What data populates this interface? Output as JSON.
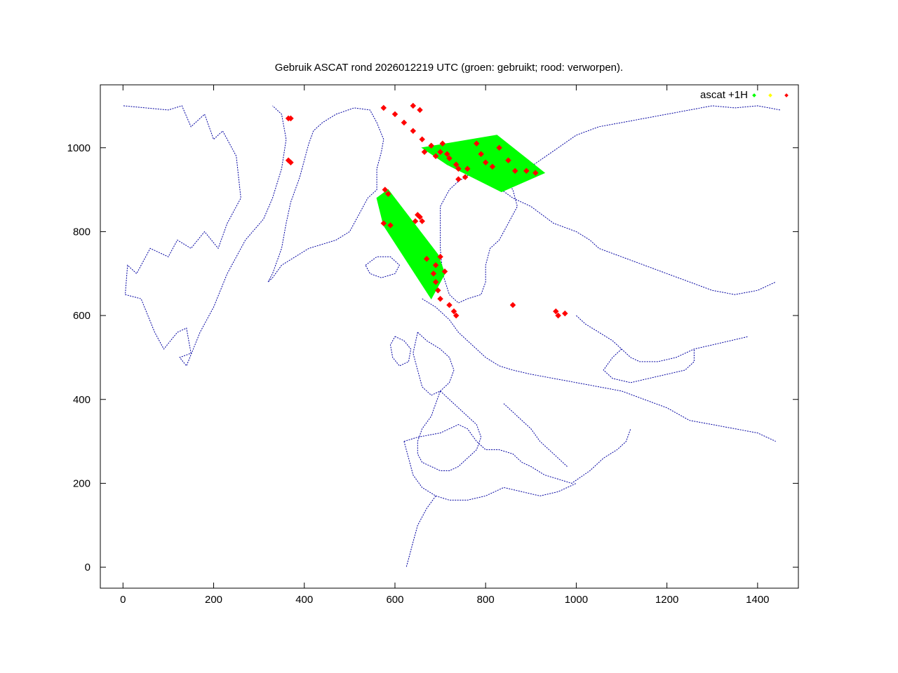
{
  "chart_data": {
    "type": "scatter",
    "title": "Gebruik ASCAT rond 2026012219 UTC (groen: gebruikt; rood: verworpen).",
    "xlabel": "",
    "ylabel": "",
    "xlim": [
      -50,
      1490
    ],
    "ylim": [
      -50,
      1150
    ],
    "x_ticks": [
      "0",
      "200",
      "400",
      "600",
      "800",
      "1000",
      "1200",
      "1400"
    ],
    "y_ticks": [
      "0",
      "200",
      "400",
      "600",
      "800",
      "1000"
    ],
    "x_tick_values": [
      0,
      200,
      400,
      600,
      800,
      1000,
      1200,
      1400
    ],
    "y_tick_values": [
      0,
      200,
      400,
      600,
      800,
      1000
    ],
    "grid": false,
    "legend_position": "top-right",
    "legend": {
      "label": "ascat +1H",
      "colors": [
        "#00ff00",
        "#ffff00",
        "#ff0000"
      ]
    },
    "colors": {
      "coastline": "#0000a0",
      "used": "#00ff00",
      "rejected": "#ff0000",
      "axes": "#000000"
    },
    "series": [
      {
        "name": "",
        "role": "used (green swath, southern segment)",
        "color": "#00ff00",
        "polygon": [
          [
            560,
            880
          ],
          [
            585,
            900
          ],
          [
            695,
            745
          ],
          [
            710,
            700
          ],
          [
            680,
            640
          ],
          [
            575,
            815
          ]
        ]
      },
      {
        "name": "",
        "role": "used (green swath, northern segment)",
        "color": "#00ff00",
        "polygon": [
          [
            660,
            1000
          ],
          [
            825,
            1030
          ],
          [
            930,
            940
          ],
          [
            835,
            895
          ],
          [
            715,
            960
          ]
        ]
      },
      {
        "name": "",
        "role": "rejected (red)",
        "color": "#ff0000",
        "points": [
          [
            575,
            1095
          ],
          [
            600,
            1080
          ],
          [
            620,
            1060
          ],
          [
            640,
            1040
          ],
          [
            660,
            1020
          ],
          [
            680,
            1005
          ],
          [
            700,
            990
          ],
          [
            720,
            975
          ],
          [
            735,
            960
          ],
          [
            705,
            1010
          ],
          [
            715,
            985
          ],
          [
            690,
            980
          ],
          [
            665,
            990
          ],
          [
            780,
            1010
          ],
          [
            790,
            985
          ],
          [
            800,
            965
          ],
          [
            815,
            955
          ],
          [
            830,
            1000
          ],
          [
            850,
            970
          ],
          [
            865,
            945
          ],
          [
            760,
            950
          ],
          [
            755,
            930
          ],
          [
            740,
            925
          ],
          [
            640,
            1100
          ],
          [
            655,
            1090
          ],
          [
            365,
            1070
          ],
          [
            370,
            1070
          ],
          [
            365,
            970
          ],
          [
            370,
            965
          ],
          [
            578,
            900
          ],
          [
            585,
            890
          ],
          [
            650,
            840
          ],
          [
            655,
            835
          ],
          [
            645,
            825
          ],
          [
            660,
            825
          ],
          [
            590,
            815
          ],
          [
            575,
            820
          ],
          [
            670,
            735
          ],
          [
            690,
            720
          ],
          [
            710,
            705
          ],
          [
            700,
            740
          ],
          [
            685,
            700
          ],
          [
            690,
            680
          ],
          [
            695,
            660
          ],
          [
            700,
            640
          ],
          [
            720,
            625
          ],
          [
            730,
            610
          ],
          [
            735,
            600
          ],
          [
            860,
            625
          ],
          [
            955,
            610
          ],
          [
            960,
            600
          ],
          [
            975,
            605
          ],
          [
            740,
            950
          ],
          [
            890,
            945
          ],
          [
            910,
            940
          ]
        ]
      }
    ],
    "coastlines": [
      [
        [
          1,
          1100
        ],
        [
          50,
          1095
        ],
        [
          100,
          1090
        ],
        [
          130,
          1100
        ],
        [
          150,
          1050
        ],
        [
          180,
          1080
        ],
        [
          200,
          1020
        ],
        [
          220,
          1040
        ],
        [
          250,
          980
        ],
        [
          260,
          880
        ],
        [
          230,
          820
        ],
        [
          210,
          760
        ],
        [
          180,
          800
        ],
        [
          150,
          760
        ],
        [
          120,
          780
        ],
        [
          100,
          740
        ],
        [
          60,
          760
        ],
        [
          30,
          700
        ],
        [
          10,
          720
        ],
        [
          5,
          650
        ],
        [
          40,
          640
        ],
        [
          70,
          560
        ],
        [
          90,
          520
        ],
        [
          120,
          560
        ],
        [
          140,
          570
        ],
        [
          150,
          510
        ],
        [
          125,
          500
        ],
        [
          140,
          480
        ],
        [
          170,
          560
        ],
        [
          200,
          620
        ],
        [
          230,
          700
        ],
        [
          270,
          780
        ],
        [
          310,
          830
        ],
        [
          330,
          880
        ],
        [
          350,
          950
        ],
        [
          360,
          1020
        ],
        [
          350,
          1080
        ],
        [
          330,
          1100
        ]
      ],
      [
        [
          320,
          680
        ],
        [
          330,
          700
        ],
        [
          350,
          760
        ],
        [
          360,
          820
        ],
        [
          370,
          870
        ],
        [
          390,
          930
        ],
        [
          400,
          970
        ],
        [
          410,
          1010
        ],
        [
          420,
          1040
        ],
        [
          440,
          1060
        ],
        [
          470,
          1080
        ],
        [
          510,
          1095
        ],
        [
          545,
          1090
        ],
        [
          560,
          1060
        ],
        [
          575,
          1020
        ],
        [
          570,
          990
        ],
        [
          560,
          950
        ],
        [
          560,
          900
        ],
        [
          540,
          880
        ],
        [
          520,
          840
        ],
        [
          500,
          800
        ],
        [
          470,
          780
        ],
        [
          440,
          770
        ],
        [
          410,
          760
        ],
        [
          380,
          740
        ],
        [
          350,
          720
        ],
        [
          330,
          690
        ],
        [
          320,
          680
        ]
      ],
      [
        [
          535,
          720
        ],
        [
          560,
          740
        ],
        [
          590,
          740
        ],
        [
          610,
          720
        ],
        [
          600,
          700
        ],
        [
          570,
          690
        ],
        [
          545,
          700
        ],
        [
          535,
          720
        ]
      ],
      [
        [
          700,
          860
        ],
        [
          720,
          900
        ],
        [
          740,
          920
        ],
        [
          770,
          940
        ],
        [
          800,
          950
        ],
        [
          830,
          940
        ],
        [
          860,
          900
        ],
        [
          870,
          860
        ],
        [
          850,
          820
        ],
        [
          830,
          780
        ],
        [
          810,
          760
        ],
        [
          800,
          720
        ],
        [
          800,
          680
        ],
        [
          790,
          650
        ],
        [
          760,
          640
        ],
        [
          740,
          630
        ],
        [
          720,
          650
        ],
        [
          705,
          700
        ],
        [
          700,
          760
        ],
        [
          700,
          820
        ],
        [
          700,
          860
        ]
      ],
      [
        [
          880,
          940
        ],
        [
          920,
          970
        ],
        [
          960,
          1000
        ],
        [
          1000,
          1030
        ],
        [
          1050,
          1050
        ],
        [
          1100,
          1060
        ],
        [
          1150,
          1070
        ],
        [
          1200,
          1080
        ],
        [
          1250,
          1090
        ],
        [
          1300,
          1100
        ],
        [
          1350,
          1095
        ],
        [
          1400,
          1100
        ],
        [
          1450,
          1090
        ]
      ],
      [
        [
          835,
          900
        ],
        [
          860,
          880
        ],
        [
          900,
          860
        ],
        [
          950,
          820
        ],
        [
          1000,
          800
        ],
        [
          1030,
          780
        ],
        [
          1050,
          760
        ],
        [
          1100,
          740
        ],
        [
          1150,
          720
        ],
        [
          1200,
          700
        ],
        [
          1250,
          680
        ],
        [
          1300,
          660
        ],
        [
          1350,
          650
        ],
        [
          1400,
          660
        ],
        [
          1440,
          680
        ]
      ],
      [
        [
          660,
          640
        ],
        [
          690,
          620
        ],
        [
          720,
          590
        ],
        [
          740,
          560
        ],
        [
          760,
          540
        ],
        [
          780,
          520
        ],
        [
          800,
          500
        ],
        [
          830,
          480
        ],
        [
          860,
          470
        ],
        [
          900,
          460
        ],
        [
          950,
          450
        ],
        [
          1000,
          440
        ],
        [
          1050,
          430
        ],
        [
          1100,
          420
        ],
        [
          1150,
          400
        ],
        [
          1200,
          380
        ],
        [
          1250,
          350
        ],
        [
          1300,
          340
        ],
        [
          1350,
          330
        ],
        [
          1400,
          320
        ],
        [
          1440,
          300
        ]
      ],
      [
        [
          650,
          560
        ],
        [
          670,
          540
        ],
        [
          700,
          520
        ],
        [
          720,
          500
        ],
        [
          730,
          470
        ],
        [
          720,
          440
        ],
        [
          700,
          420
        ],
        [
          680,
          410
        ],
        [
          660,
          430
        ],
        [
          650,
          470
        ],
        [
          640,
          510
        ],
        [
          650,
          560
        ]
      ],
      [
        [
          600,
          550
        ],
        [
          620,
          540
        ],
        [
          635,
          520
        ],
        [
          630,
          490
        ],
        [
          610,
          480
        ],
        [
          595,
          500
        ],
        [
          590,
          530
        ],
        [
          600,
          550
        ]
      ],
      [
        [
          700,
          420
        ],
        [
          720,
          400
        ],
        [
          740,
          380
        ],
        [
          760,
          360
        ],
        [
          780,
          340
        ],
        [
          790,
          310
        ],
        [
          780,
          280
        ],
        [
          760,
          260
        ],
        [
          740,
          240
        ],
        [
          720,
          230
        ],
        [
          700,
          230
        ],
        [
          680,
          240
        ],
        [
          660,
          250
        ],
        [
          650,
          270
        ],
        [
          650,
          300
        ],
        [
          660,
          330
        ],
        [
          680,
          360
        ],
        [
          690,
          390
        ],
        [
          700,
          420
        ]
      ],
      [
        [
          620,
          300
        ],
        [
          650,
          310
        ],
        [
          700,
          320
        ],
        [
          720,
          330
        ],
        [
          740,
          340
        ],
        [
          760,
          330
        ],
        [
          780,
          300
        ],
        [
          800,
          280
        ],
        [
          830,
          280
        ],
        [
          860,
          270
        ],
        [
          880,
          250
        ],
        [
          900,
          240
        ],
        [
          930,
          220
        ],
        [
          960,
          210
        ],
        [
          990,
          200
        ],
        [
          1030,
          230
        ],
        [
          1060,
          260
        ],
        [
          1090,
          280
        ],
        [
          1110,
          300
        ],
        [
          1120,
          330
        ]
      ],
      [
        [
          840,
          390
        ],
        [
          860,
          370
        ],
        [
          880,
          350
        ],
        [
          900,
          330
        ],
        [
          920,
          300
        ],
        [
          940,
          280
        ],
        [
          960,
          260
        ],
        [
          980,
          240
        ]
      ],
      [
        [
          620,
          300
        ],
        [
          630,
          260
        ],
        [
          640,
          220
        ],
        [
          660,
          190
        ],
        [
          690,
          170
        ],
        [
          720,
          160
        ],
        [
          760,
          160
        ],
        [
          800,
          170
        ],
        [
          840,
          190
        ],
        [
          880,
          180
        ],
        [
          920,
          170
        ],
        [
          960,
          180
        ],
        [
          1000,
          200
        ]
      ],
      [
        [
          690,
          170
        ],
        [
          670,
          140
        ],
        [
          650,
          100
        ],
        [
          640,
          60
        ],
        [
          630,
          20
        ],
        [
          625,
          0
        ]
      ],
      [
        [
          1000,
          600
        ],
        [
          1020,
          580
        ],
        [
          1050,
          560
        ],
        [
          1080,
          540
        ],
        [
          1100,
          520
        ],
        [
          1120,
          500
        ],
        [
          1140,
          490
        ],
        [
          1180,
          490
        ],
        [
          1220,
          500
        ],
        [
          1260,
          520
        ],
        [
          1300,
          530
        ],
        [
          1340,
          540
        ],
        [
          1380,
          550
        ]
      ],
      [
        [
          1100,
          520
        ],
        [
          1080,
          500
        ],
        [
          1060,
          470
        ],
        [
          1080,
          450
        ],
        [
          1120,
          440
        ],
        [
          1160,
          450
        ],
        [
          1200,
          460
        ],
        [
          1240,
          470
        ],
        [
          1260,
          490
        ],
        [
          1260,
          520
        ]
      ]
    ]
  }
}
